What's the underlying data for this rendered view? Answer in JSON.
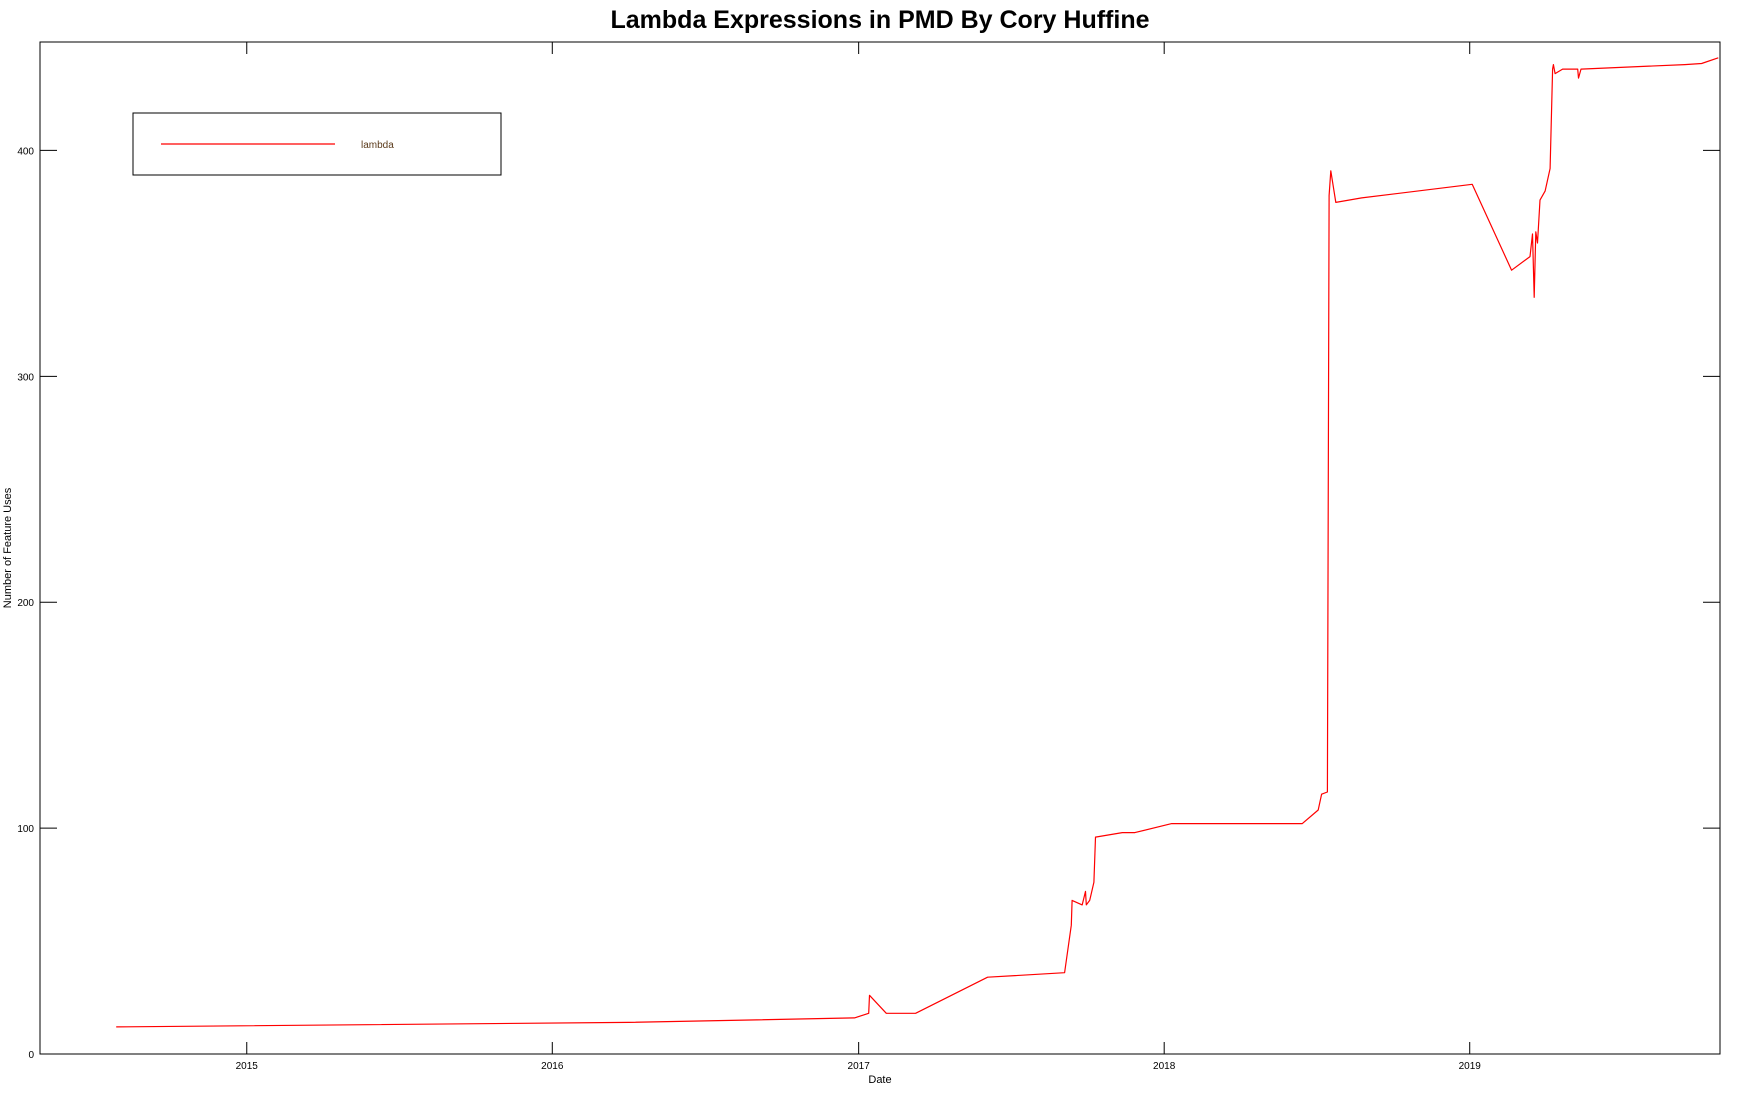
{
  "chart_data": {
    "type": "line",
    "title": "Lambda Expressions in PMD By Cory Huffine",
    "xlabel": "Date",
    "ylabel": "Number of Feature Uses",
    "xlim": [
      "2014-04-29",
      "2019-10-27"
    ],
    "ylim": [
      0,
      448
    ],
    "x_ticks": [
      {
        "date": "2015-01-01",
        "label": "2015"
      },
      {
        "date": "2016-01-01",
        "label": "2016"
      },
      {
        "date": "2017-01-01",
        "label": "2017"
      },
      {
        "date": "2018-01-01",
        "label": "2018"
      },
      {
        "date": "2019-01-01",
        "label": "2019"
      }
    ],
    "y_ticks": [
      0,
      100,
      200,
      300,
      400
    ],
    "grid": false,
    "legend": {
      "position": "top-left"
    },
    "series": [
      {
        "name": "lambda",
        "color": "#ff0000",
        "points": [
          [
            "2014-07-29",
            12
          ],
          [
            "2016-04-01",
            14
          ],
          [
            "2016-12-27",
            16
          ],
          [
            "2017-01-13",
            18
          ],
          [
            "2017-01-14",
            26
          ],
          [
            "2017-02-03",
            18
          ],
          [
            "2017-03-10",
            18
          ],
          [
            "2017-06-04",
            34
          ],
          [
            "2017-09-04",
            36
          ],
          [
            "2017-09-12",
            57
          ],
          [
            "2017-09-13",
            68
          ],
          [
            "2017-09-25",
            66
          ],
          [
            "2017-09-29",
            72
          ],
          [
            "2017-09-30",
            66
          ],
          [
            "2017-10-04",
            68
          ],
          [
            "2017-10-09",
            76
          ],
          [
            "2017-10-11",
            96
          ],
          [
            "2017-11-12",
            98
          ],
          [
            "2017-11-27",
            98
          ],
          [
            "2018-01-10",
            102
          ],
          [
            "2018-06-15",
            102
          ],
          [
            "2018-07-04",
            108
          ],
          [
            "2018-07-08",
            115
          ],
          [
            "2018-07-15",
            116
          ],
          [
            "2018-07-17",
            380
          ],
          [
            "2018-07-19",
            391
          ],
          [
            "2018-07-25",
            377
          ],
          [
            "2018-08-25",
            379
          ],
          [
            "2019-01-04",
            385
          ],
          [
            "2019-02-20",
            347
          ],
          [
            "2019-03-14",
            353
          ],
          [
            "2019-03-17",
            363
          ],
          [
            "2019-03-19",
            335
          ],
          [
            "2019-03-21",
            364
          ],
          [
            "2019-03-23",
            359
          ],
          [
            "2019-03-26",
            378
          ],
          [
            "2019-04-01",
            382
          ],
          [
            "2019-04-07",
            392
          ],
          [
            "2019-04-10",
            436
          ],
          [
            "2019-04-11",
            438
          ],
          [
            "2019-04-13",
            434
          ],
          [
            "2019-04-22",
            436
          ],
          [
            "2019-05-10",
            436
          ],
          [
            "2019-05-11",
            432
          ],
          [
            "2019-05-14",
            436
          ],
          [
            "2019-09-15",
            438
          ],
          [
            "2019-10-05",
            438.5
          ],
          [
            "2019-10-25",
            441
          ]
        ]
      }
    ]
  }
}
